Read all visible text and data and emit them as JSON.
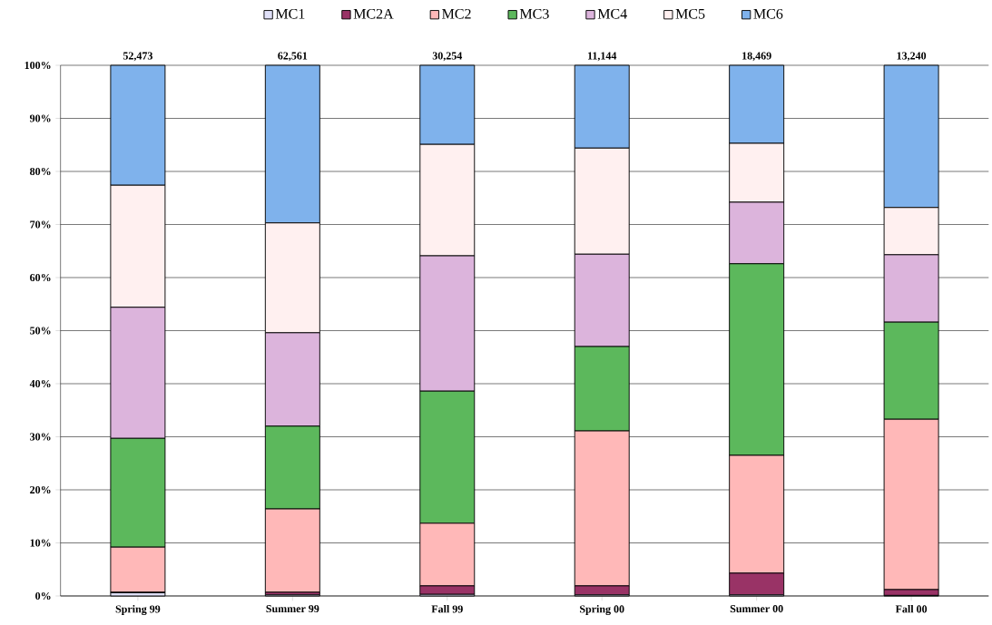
{
  "chart_data": {
    "type": "bar",
    "stacked": true,
    "categories": [
      "Spring 99",
      "Summer 99",
      "Fall 99",
      "Spring 00",
      "Summer 00",
      "Fall 00"
    ],
    "series": [
      {
        "name": "MC1",
        "color": "#e0e0f8",
        "values": [
          0.6,
          0.2,
          0.3,
          0.2,
          0.2,
          0.1
        ]
      },
      {
        "name": "MC2A",
        "color": "#993366",
        "values": [
          0.1,
          0.5,
          1.6,
          1.7,
          4.1,
          1.1
        ]
      },
      {
        "name": "MC2",
        "color": "#ffb8b8",
        "values": [
          8.5,
          15.7,
          11.8,
          29.2,
          22.2,
          32.1
        ]
      },
      {
        "name": "MC3",
        "color": "#5cb85c",
        "values": [
          20.5,
          15.6,
          24.9,
          15.9,
          36.1,
          18.3
        ]
      },
      {
        "name": "MC4",
        "color": "#dcb4dc",
        "values": [
          24.7,
          17.6,
          25.5,
          17.4,
          11.6,
          12.7
        ]
      },
      {
        "name": "MC5",
        "color": "#fff0f0",
        "values": [
          23.0,
          20.7,
          21.0,
          20.0,
          11.1,
          8.9
        ]
      },
      {
        "name": "MC6",
        "color": "#7fb2ec",
        "values": [
          22.6,
          29.7,
          14.9,
          15.6,
          14.7,
          26.8
        ]
      }
    ],
    "annotations": [
      "52,473",
      "62,561",
      "30,254",
      "11,144",
      "18,469",
      "13,240"
    ],
    "ylim": [
      0,
      100
    ],
    "yticks": [
      {
        "value": 0,
        "label": "0%"
      },
      {
        "value": 10,
        "label": "10%"
      },
      {
        "value": 20,
        "label": "20%"
      },
      {
        "value": 30,
        "label": "30%"
      },
      {
        "value": 40,
        "label": "40%"
      },
      {
        "value": 50,
        "label": "50%"
      },
      {
        "value": 60,
        "label": "60%"
      },
      {
        "value": 70,
        "label": "70%"
      },
      {
        "value": 80,
        "label": "80%"
      },
      {
        "value": 90,
        "label": "90%"
      },
      {
        "value": 100,
        "label": "100%"
      }
    ],
    "grid": "y",
    "legend": "top"
  }
}
